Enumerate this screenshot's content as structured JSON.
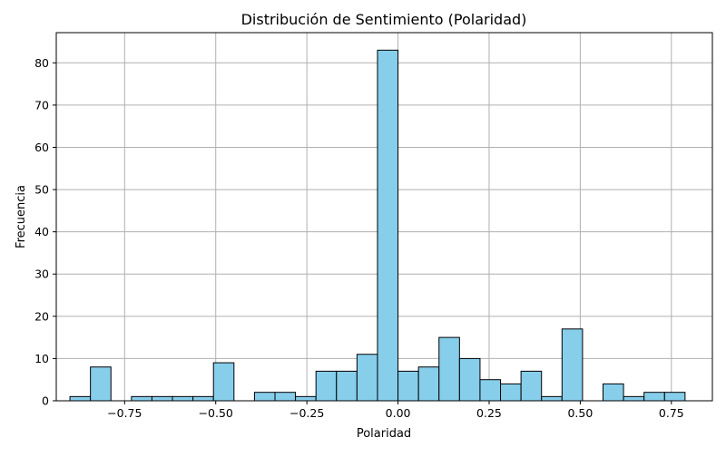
{
  "chart_data": {
    "type": "bar",
    "title": "Distribución de Sentimiento (Polaridad)",
    "xlabel": "Polaridad",
    "ylabel": "Frecuencia",
    "xlim": [
      -0.9375,
      0.8625
    ],
    "ylim": [
      0,
      87.15
    ],
    "grid": true,
    "bar_color": "#87ceeb",
    "edge_color": "#000000",
    "grid_color": "#b0b0b0",
    "bin_width": 0.05625,
    "bins": [
      {
        "x0": -0.9,
        "x1": -0.84375,
        "count": 1
      },
      {
        "x0": -0.84375,
        "x1": -0.7875,
        "count": 8
      },
      {
        "x0": -0.7875,
        "x1": -0.73125,
        "count": 0
      },
      {
        "x0": -0.73125,
        "x1": -0.675,
        "count": 1
      },
      {
        "x0": -0.675,
        "x1": -0.61875,
        "count": 1
      },
      {
        "x0": -0.61875,
        "x1": -0.5625,
        "count": 1
      },
      {
        "x0": -0.5625,
        "x1": -0.50625,
        "count": 1
      },
      {
        "x0": -0.50625,
        "x1": -0.45,
        "count": 9
      },
      {
        "x0": -0.45,
        "x1": -0.39375,
        "count": 0
      },
      {
        "x0": -0.39375,
        "x1": -0.3375,
        "count": 2
      },
      {
        "x0": -0.3375,
        "x1": -0.28125,
        "count": 2
      },
      {
        "x0": -0.28125,
        "x1": -0.225,
        "count": 1
      },
      {
        "x0": -0.225,
        "x1": -0.16875,
        "count": 7
      },
      {
        "x0": -0.16875,
        "x1": -0.1125,
        "count": 7
      },
      {
        "x0": -0.1125,
        "x1": -0.05625,
        "count": 11
      },
      {
        "x0": -0.05625,
        "x1": 0.0,
        "count": 83
      },
      {
        "x0": 0.0,
        "x1": 0.05625,
        "count": 7
      },
      {
        "x0": 0.05625,
        "x1": 0.1125,
        "count": 8
      },
      {
        "x0": 0.1125,
        "x1": 0.16875,
        "count": 15
      },
      {
        "x0": 0.16875,
        "x1": 0.225,
        "count": 10
      },
      {
        "x0": 0.225,
        "x1": 0.28125,
        "count": 5
      },
      {
        "x0": 0.28125,
        "x1": 0.3375,
        "count": 4
      },
      {
        "x0": 0.3375,
        "x1": 0.39375,
        "count": 7
      },
      {
        "x0": 0.39375,
        "x1": 0.45,
        "count": 1
      },
      {
        "x0": 0.45,
        "x1": 0.50625,
        "count": 17
      },
      {
        "x0": 0.50625,
        "x1": 0.5625,
        "count": 0
      },
      {
        "x0": 0.5625,
        "x1": 0.61875,
        "count": 4
      },
      {
        "x0": 0.61875,
        "x1": 0.675,
        "count": 1
      },
      {
        "x0": 0.675,
        "x1": 0.73125,
        "count": 2
      },
      {
        "x0": 0.73125,
        "x1": 0.7875,
        "count": 2
      }
    ],
    "x_ticks": [
      {
        "value": -0.75,
        "label": "−0.75"
      },
      {
        "value": -0.5,
        "label": "−0.50"
      },
      {
        "value": -0.25,
        "label": "−0.25"
      },
      {
        "value": 0.0,
        "label": "0.00"
      },
      {
        "value": 0.25,
        "label": "0.25"
      },
      {
        "value": 0.5,
        "label": "0.50"
      },
      {
        "value": 0.75,
        "label": "0.75"
      }
    ],
    "y_ticks": [
      {
        "value": 0,
        "label": "0"
      },
      {
        "value": 10,
        "label": "10"
      },
      {
        "value": 20,
        "label": "20"
      },
      {
        "value": 30,
        "label": "30"
      },
      {
        "value": 40,
        "label": "40"
      },
      {
        "value": 50,
        "label": "50"
      },
      {
        "value": 60,
        "label": "60"
      },
      {
        "value": 70,
        "label": "70"
      },
      {
        "value": 80,
        "label": "80"
      }
    ]
  }
}
